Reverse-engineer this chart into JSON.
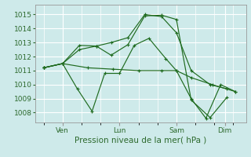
{
  "background_color": "#ceeaea",
  "grid_color": "#ffffff",
  "line_color": "#1f6b1f",
  "xlabel": "Pression niveau de la mer( hPa )",
  "yticks": [
    1008,
    1009,
    1010,
    1011,
    1012,
    1013,
    1014,
    1015
  ],
  "xtick_labels": [
    "Ven",
    "Lun",
    "Sam",
    "Dim"
  ],
  "xtick_positions": [
    0.13,
    0.4,
    0.67,
    0.9
  ],
  "ylim": [
    1007.3,
    1015.7
  ],
  "xlim": [
    0.0,
    1.0
  ],
  "lines": [
    {
      "x": [
        0.04,
        0.13,
        0.2,
        0.27,
        0.33,
        0.4,
        0.47,
        0.54,
        0.62,
        0.67,
        0.74,
        0.81,
        0.88,
        0.95
      ],
      "y": [
        1011.2,
        1011.5,
        1009.7,
        1008.1,
        1010.8,
        1010.8,
        1012.8,
        1013.3,
        1011.85,
        1011.0,
        1009.0,
        1007.6,
        1010.0,
        1009.5
      ]
    },
    {
      "x": [
        0.04,
        0.13,
        0.21,
        0.29,
        0.36,
        0.44,
        0.52,
        0.6,
        0.67,
        0.74,
        0.83,
        0.91
      ],
      "y": [
        1011.2,
        1011.5,
        1012.8,
        1012.75,
        1013.0,
        1013.35,
        1015.0,
        1014.85,
        1013.7,
        1011.0,
        1010.0,
        1009.7
      ]
    },
    {
      "x": [
        0.04,
        0.13,
        0.25,
        0.37,
        0.49,
        0.6,
        0.67,
        0.74,
        0.84,
        0.95
      ],
      "y": [
        1011.2,
        1011.5,
        1011.2,
        1011.1,
        1011.0,
        1011.0,
        1011.0,
        1010.5,
        1010.0,
        1009.5
      ]
    },
    {
      "x": [
        0.04,
        0.13,
        0.21,
        0.29,
        0.36,
        0.44,
        0.52,
        0.6,
        0.67,
        0.74,
        0.83,
        0.91
      ],
      "y": [
        1011.2,
        1011.5,
        1012.5,
        1012.75,
        1012.1,
        1012.85,
        1014.9,
        1014.95,
        1014.65,
        1008.9,
        1007.65,
        1009.1
      ]
    }
  ]
}
